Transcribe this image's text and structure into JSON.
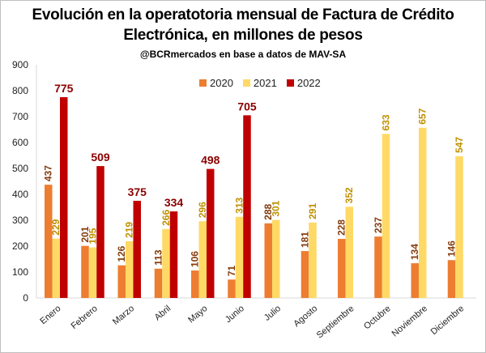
{
  "chart_data": {
    "type": "bar",
    "title": "Evolución en la operatotoria mensual de Factura de Crédito Electrónica, en millones de pesos",
    "title_line1": "Evolución en la operatotoria mensual de Factura de Crédito",
    "title_line2": "Electrónica, en millones de pesos",
    "subtitle": "@BCRmercados en base a datos de MAV-SA",
    "ylim": [
      0,
      900
    ],
    "yticks": [
      0,
      100,
      200,
      300,
      400,
      500,
      600,
      700,
      800,
      900
    ],
    "grid": false,
    "legend_position": "top-center",
    "categories": [
      "Enero",
      "Febrero",
      "Marzo",
      "Abril",
      "Mayo",
      "Junio",
      "Julio",
      "Agosto",
      "Septiembre",
      "Octubre",
      "Noviembre",
      "Diciembre"
    ],
    "series": [
      {
        "name": "2020",
        "color": "#ED7D31",
        "label_color": "#843C0C",
        "values": [
          437,
          201,
          126,
          113,
          106,
          71,
          288,
          181,
          228,
          237,
          134,
          146
        ]
      },
      {
        "name": "2021",
        "color": "#FFD966",
        "label_color": "#BF9000",
        "values": [
          229,
          195,
          219,
          266,
          296,
          313,
          301,
          291,
          352,
          633,
          657,
          547
        ]
      },
      {
        "name": "2022",
        "color": "#C00000",
        "label_color": "#8B0000",
        "values": [
          775,
          509,
          375,
          334,
          498,
          705,
          null,
          null,
          null,
          null,
          null,
          null
        ]
      }
    ]
  }
}
